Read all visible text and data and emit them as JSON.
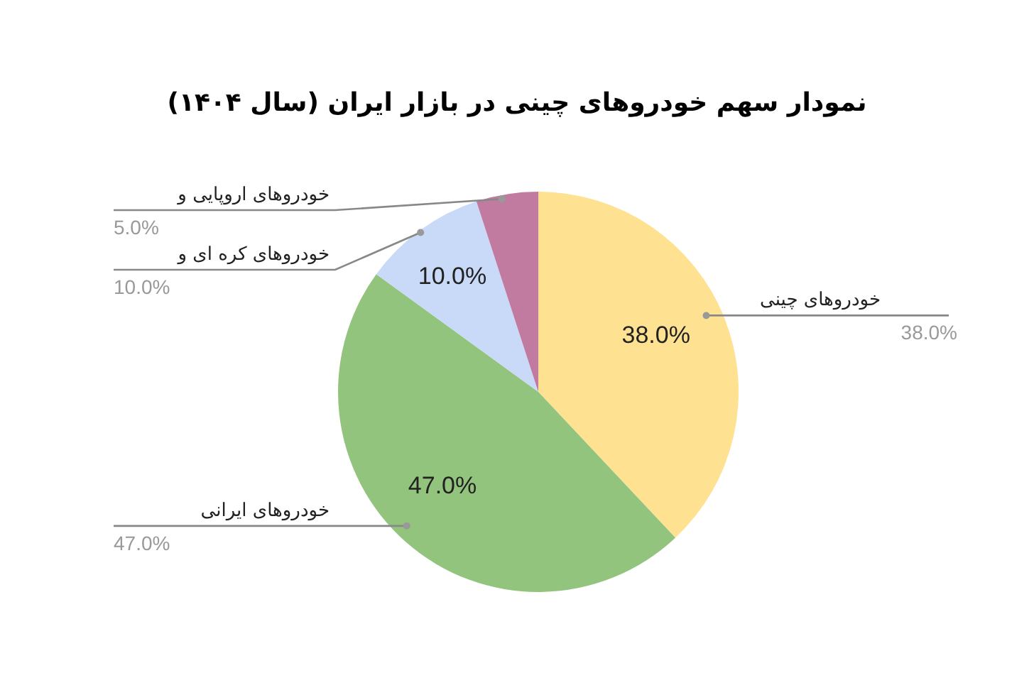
{
  "chart_data": {
    "type": "pie",
    "title": "نمودار سهم خودروهای چینی در بازار ایران (سال ۱۴۰۴)",
    "categories": [
      "خودروهای چینی",
      "خودروهای ایرانی",
      "خودروهای کره ای و",
      "خودروهای اروپایی و"
    ],
    "values": [
      38,
      47,
      10,
      5
    ],
    "colors": [
      "#fee292",
      "#93c47d",
      "#c9daf8",
      "#c27ba0"
    ],
    "value_labels": [
      "38.0%",
      "47.0%",
      "10.0%",
      "5.0%"
    ],
    "legend": false
  }
}
